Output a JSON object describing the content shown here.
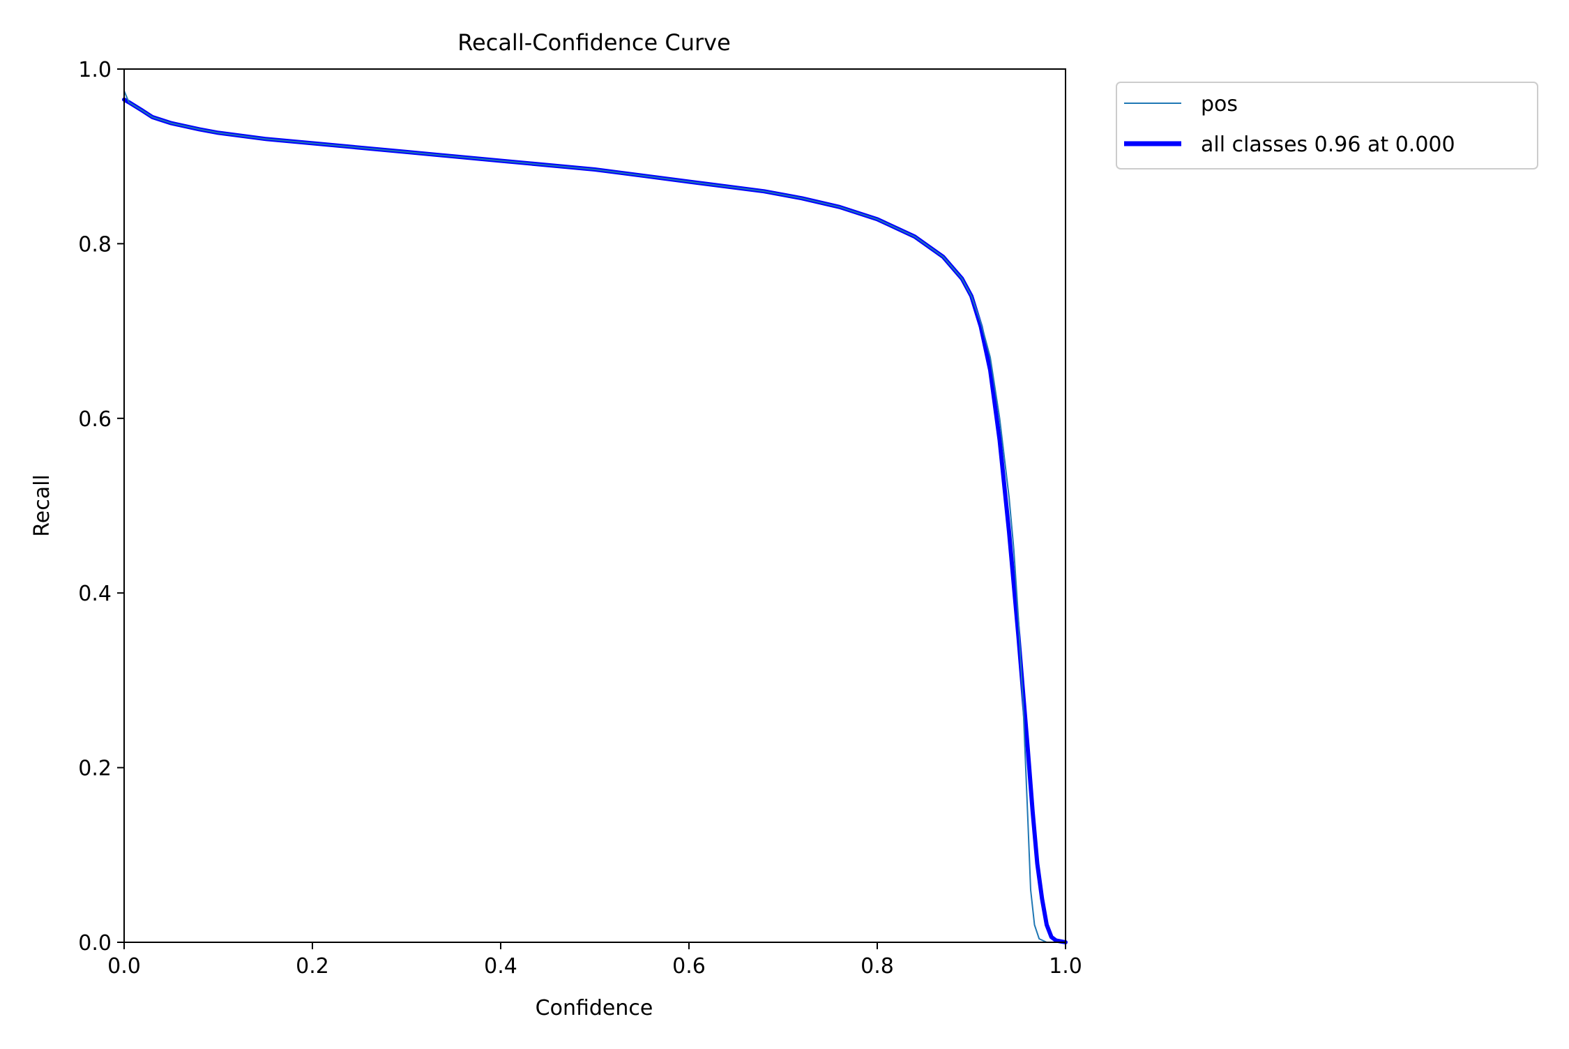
{
  "chart_data": {
    "type": "line",
    "title": "Recall-Confidence Curve",
    "xlabel": "Confidence",
    "ylabel": "Recall",
    "xlim": [
      0,
      1
    ],
    "ylim": [
      0,
      1
    ],
    "x_ticks": [
      0.0,
      0.2,
      0.4,
      0.6,
      0.8,
      1.0
    ],
    "x_tick_labels": [
      "0.0",
      "0.2",
      "0.4",
      "0.6",
      "0.8",
      "1.0"
    ],
    "y_ticks": [
      0.0,
      0.2,
      0.4,
      0.6,
      0.8,
      1.0
    ],
    "y_tick_labels": [
      "0.0",
      "0.2",
      "0.4",
      "0.6",
      "0.8",
      "1.0"
    ],
    "grid": false,
    "legend_position": "outside-top-right",
    "series": [
      {
        "name": "pos",
        "color": "#1f77b4",
        "points": [
          [
            0.0,
            0.975
          ],
          [
            0.005,
            0.962
          ],
          [
            0.02,
            0.952
          ],
          [
            0.03,
            0.945
          ],
          [
            0.05,
            0.938
          ],
          [
            0.08,
            0.931
          ],
          [
            0.1,
            0.927
          ],
          [
            0.15,
            0.92
          ],
          [
            0.2,
            0.915
          ],
          [
            0.3,
            0.905
          ],
          [
            0.4,
            0.895
          ],
          [
            0.5,
            0.885
          ],
          [
            0.55,
            0.878
          ],
          [
            0.6,
            0.871
          ],
          [
            0.68,
            0.86
          ],
          [
            0.72,
            0.852
          ],
          [
            0.76,
            0.842
          ],
          [
            0.8,
            0.828
          ],
          [
            0.84,
            0.808
          ],
          [
            0.87,
            0.785
          ],
          [
            0.89,
            0.76
          ],
          [
            0.9,
            0.74
          ],
          [
            0.91,
            0.71
          ],
          [
            0.92,
            0.67
          ],
          [
            0.93,
            0.6
          ],
          [
            0.94,
            0.51
          ],
          [
            0.945,
            0.45
          ],
          [
            0.95,
            0.37
          ],
          [
            0.955,
            0.27
          ],
          [
            0.96,
            0.14
          ],
          [
            0.963,
            0.06
          ],
          [
            0.967,
            0.02
          ],
          [
            0.972,
            0.004
          ],
          [
            0.98,
            0.0
          ],
          [
            1.0,
            0.0
          ]
        ]
      },
      {
        "name": "all classes 0.96 at 0.000",
        "color": "#0000ff",
        "points": [
          [
            0.0,
            0.965
          ],
          [
            0.005,
            0.962
          ],
          [
            0.02,
            0.952
          ],
          [
            0.03,
            0.945
          ],
          [
            0.05,
            0.938
          ],
          [
            0.08,
            0.931
          ],
          [
            0.1,
            0.927
          ],
          [
            0.15,
            0.92
          ],
          [
            0.2,
            0.915
          ],
          [
            0.3,
            0.905
          ],
          [
            0.4,
            0.895
          ],
          [
            0.5,
            0.885
          ],
          [
            0.55,
            0.878
          ],
          [
            0.6,
            0.871
          ],
          [
            0.68,
            0.86
          ],
          [
            0.72,
            0.852
          ],
          [
            0.76,
            0.842
          ],
          [
            0.8,
            0.828
          ],
          [
            0.84,
            0.808
          ],
          [
            0.87,
            0.785
          ],
          [
            0.89,
            0.76
          ],
          [
            0.9,
            0.74
          ],
          [
            0.91,
            0.705
          ],
          [
            0.92,
            0.655
          ],
          [
            0.93,
            0.575
          ],
          [
            0.94,
            0.47
          ],
          [
            0.95,
            0.35
          ],
          [
            0.96,
            0.22
          ],
          [
            0.965,
            0.15
          ],
          [
            0.97,
            0.09
          ],
          [
            0.975,
            0.05
          ],
          [
            0.98,
            0.02
          ],
          [
            0.985,
            0.006
          ],
          [
            0.99,
            0.002
          ],
          [
            1.0,
            0.0
          ]
        ]
      }
    ]
  }
}
